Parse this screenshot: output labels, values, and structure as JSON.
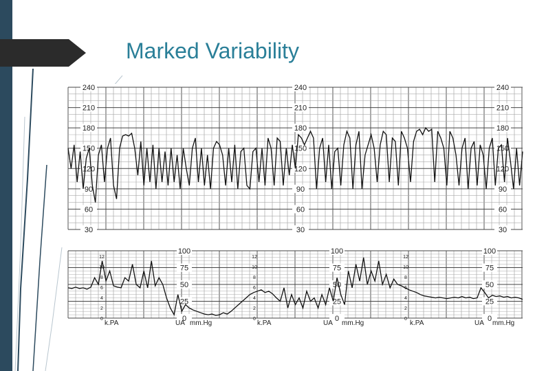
{
  "slide": {
    "title": "Marked Variability",
    "theme_color": "#2a7f98",
    "band_color": "#2c4a5e"
  },
  "chart_data": [
    {
      "type": "line",
      "title": "",
      "panel": "fetal-heart-rate",
      "ylim": [
        30,
        240
      ],
      "y_ticks": [
        "240",
        "210",
        "180",
        "150",
        "120",
        "90",
        "60",
        "30"
      ],
      "y_tick_values": [
        240,
        210,
        180,
        150,
        120,
        90,
        60,
        30
      ],
      "grid": true,
      "x_range": [
        0,
        600
      ],
      "series": [
        {
          "x": [
            0,
            4,
            8,
            12,
            16,
            20,
            24,
            28,
            32,
            36,
            40,
            44,
            48,
            52,
            56,
            60,
            64,
            68,
            72,
            76,
            80,
            84,
            88,
            92,
            96,
            100,
            104,
            108,
            112,
            116,
            120,
            124,
            128,
            132,
            136,
            140,
            144,
            148,
            152,
            156,
            160,
            164,
            168,
            172,
            176,
            180,
            184,
            188,
            192,
            196,
            200,
            204,
            208,
            212,
            216,
            220,
            224,
            228,
            232,
            236,
            240,
            244,
            248,
            252,
            256,
            260,
            264,
            268,
            272,
            276,
            280,
            284,
            288,
            292,
            296,
            300,
            304,
            308,
            312,
            316,
            320,
            324,
            328,
            332,
            336,
            340,
            344,
            348,
            352,
            356,
            360,
            364,
            368,
            372,
            376,
            380,
            384,
            388,
            392,
            396,
            400,
            404,
            408,
            412,
            416,
            420,
            424,
            428,
            432,
            436,
            440,
            444,
            448,
            452,
            456,
            460,
            464,
            468,
            472,
            476,
            480,
            484,
            488,
            492,
            496,
            500,
            504,
            508,
            512,
            516,
            520,
            524,
            528,
            532,
            536,
            540,
            544,
            548,
            552,
            556,
            560,
            564,
            568,
            572,
            576,
            580,
            584,
            588,
            592,
            596,
            600
          ],
          "y": [
            150,
            120,
            155,
            100,
            145,
            90,
            135,
            150,
            95,
            70,
            140,
            155,
            100,
            150,
            165,
            95,
            75,
            150,
            168,
            170,
            168,
            172,
            150,
            110,
            160,
            95,
            150,
            100,
            155,
            90,
            150,
            100,
            145,
            95,
            150,
            100,
            140,
            90,
            150,
            120,
            95,
            150,
            165,
            100,
            150,
            95,
            140,
            90,
            150,
            160,
            155,
            140,
            95,
            150,
            100,
            155,
            90,
            145,
            150,
            95,
            90,
            145,
            150,
            100,
            150,
            95,
            165,
            150,
            95,
            165,
            160,
            95,
            150,
            110,
            155,
            120,
            170,
            165,
            155,
            165,
            175,
            165,
            90,
            150,
            165,
            100,
            155,
            90,
            145,
            150,
            95,
            155,
            175,
            165,
            90,
            155,
            175,
            90,
            140,
            155,
            170,
            150,
            100,
            155,
            175,
            170,
            100,
            165,
            160,
            95,
            175,
            165,
            150,
            100,
            160,
            175,
            178,
            170,
            180,
            175,
            178,
            100,
            175,
            165,
            150,
            95,
            175,
            165,
            140,
            95,
            150,
            165,
            90,
            150,
            160,
            95,
            155,
            140,
            90,
            150,
            165,
            95,
            150,
            155,
            100,
            165,
            130,
            90,
            150,
            95,
            145
          ]
        }
      ]
    },
    {
      "type": "line",
      "title": "",
      "panel": "uterine-activity",
      "ylim": [
        0,
        100
      ],
      "y_ticks": [
        "100",
        "75",
        "50",
        "25",
        "0"
      ],
      "y_tick_values": [
        100,
        75,
        50,
        25,
        0
      ],
      "kpa_ticks": [
        "12",
        "10",
        "8",
        "6",
        "4",
        "2",
        "0"
      ],
      "unit_labels": [
        "k.PA",
        "UA",
        "mm.Hg"
      ],
      "grid": true,
      "x_range": [
        0,
        600
      ],
      "series": [
        {
          "x": [
            0,
            5,
            10,
            15,
            20,
            25,
            30,
            35,
            40,
            45,
            50,
            55,
            60,
            65,
            70,
            75,
            80,
            85,
            90,
            95,
            100,
            105,
            110,
            115,
            120,
            125,
            130,
            135,
            140,
            145,
            150,
            155,
            160,
            165,
            170,
            175,
            180,
            185,
            190,
            195,
            200,
            205,
            210,
            215,
            220,
            225,
            230,
            235,
            240,
            245,
            250,
            255,
            260,
            265,
            270,
            275,
            280,
            285,
            290,
            295,
            300,
            305,
            310,
            315,
            320,
            325,
            330,
            335,
            340,
            345,
            350,
            355,
            360,
            365,
            370,
            375,
            380,
            385,
            390,
            395,
            400,
            405,
            410,
            415,
            420,
            425,
            430,
            435,
            440,
            445,
            450,
            455,
            460,
            465,
            470,
            475,
            480,
            485,
            490,
            495,
            500,
            505,
            510,
            515,
            520,
            525,
            530,
            535,
            540,
            545,
            550,
            555,
            560,
            565,
            570,
            575,
            580,
            585,
            590,
            595,
            600
          ],
          "y": [
            45,
            44,
            46,
            44,
            45,
            43,
            46,
            60,
            50,
            85,
            55,
            70,
            48,
            46,
            45,
            60,
            55,
            80,
            50,
            45,
            70,
            45,
            85,
            48,
            60,
            50,
            30,
            15,
            5,
            35,
            10,
            20,
            15,
            12,
            10,
            8,
            6,
            5,
            6,
            4,
            5,
            8,
            6,
            10,
            15,
            20,
            25,
            30,
            35,
            38,
            40,
            42,
            38,
            40,
            36,
            30,
            25,
            45,
            15,
            35,
            20,
            30,
            15,
            40,
            25,
            30,
            15,
            35,
            20,
            45,
            25,
            60,
            35,
            20,
            70,
            45,
            80,
            55,
            90,
            50,
            70,
            55,
            85,
            50,
            65,
            45,
            58,
            50,
            48,
            45,
            42,
            40,
            38,
            35,
            33,
            32,
            31,
            30,
            31,
            30,
            29,
            30,
            31,
            30,
            32,
            30,
            31,
            29,
            30,
            45,
            38,
            30,
            34,
            32,
            33,
            31,
            32,
            30,
            31,
            30,
            28
          ]
        }
      ]
    }
  ]
}
